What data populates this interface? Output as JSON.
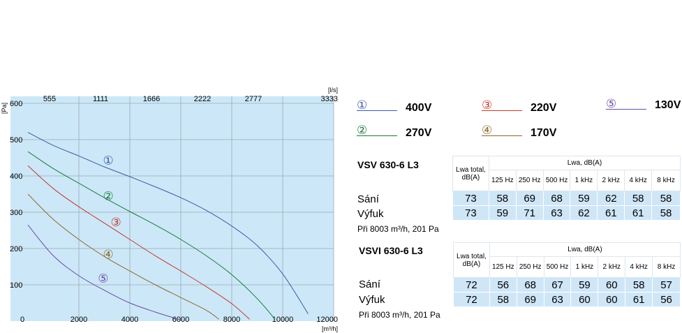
{
  "chart_data": {
    "type": "line",
    "xlabel": "[m³/h]",
    "ylabel": "[Pa]",
    "x2label": "[l/s]",
    "xlim": [
      0,
      12000
    ],
    "ylim": [
      0,
      600
    ],
    "x_ticks": [
      "0",
      "2000",
      "4000",
      "6000",
      "8000",
      "10000",
      "12000"
    ],
    "y_ticks": [
      "100",
      "200",
      "300",
      "400",
      "500",
      "600"
    ],
    "x2_ticks": [
      "555",
      "1111",
      "1666",
      "2222",
      "2777",
      "3333"
    ],
    "grid": true,
    "background": "#cce8f8",
    "series": [
      {
        "name": "①",
        "color": "#3b5aa6",
        "x": [
          0,
          1000,
          2000,
          3000,
          4000,
          5000,
          6000,
          7000,
          8000,
          9000,
          10000,
          11000
        ],
        "y": [
          520,
          484,
          455,
          425,
          398,
          370,
          340,
          305,
          262,
          208,
          130,
          20
        ]
      },
      {
        "name": "②",
        "color": "#1a7a3e",
        "x": [
          0,
          1000,
          2000,
          3000,
          4000,
          5000,
          6000,
          7000,
          8000,
          9000,
          9700
        ],
        "y": [
          467,
          420,
          380,
          340,
          302,
          265,
          225,
          180,
          128,
          62,
          5
        ]
      },
      {
        "name": "③",
        "color": "#c0392b",
        "x": [
          0,
          1000,
          2000,
          3000,
          4000,
          5000,
          6000,
          7000,
          8000,
          8700
        ],
        "y": [
          428,
          365,
          315,
          270,
          225,
          180,
          138,
          95,
          48,
          5
        ]
      },
      {
        "name": "④",
        "color": "#8b6a2b",
        "x": [
          0,
          1000,
          2000,
          3000,
          4000,
          5000,
          6000,
          7000,
          7500
        ],
        "y": [
          350,
          280,
          225,
          178,
          138,
          100,
          65,
          30,
          5
        ]
      },
      {
        "name": "⑤",
        "color": "#6a4aa8",
        "x": [
          0,
          1000,
          2000,
          3000,
          4000,
          5000,
          6000
        ],
        "y": [
          265,
          180,
          125,
          85,
          50,
          25,
          3
        ]
      }
    ],
    "annotations": [
      {
        "text": "①",
        "x": 3000,
        "y": 443,
        "color": "#3b5aa6"
      },
      {
        "text": "②",
        "x": 3000,
        "y": 345,
        "color": "#1a7a3e"
      },
      {
        "text": "③",
        "x": 3300,
        "y": 273,
        "color": "#c0392b"
      },
      {
        "text": "④",
        "x": 3000,
        "y": 185,
        "color": "#8b6a2b"
      },
      {
        "text": "⑤",
        "x": 2800,
        "y": 118,
        "color": "#6a4aa8"
      }
    ]
  },
  "legend": [
    {
      "num": "①",
      "label": "400V",
      "color": "#3b5aa6"
    },
    {
      "num": "②",
      "label": "270V",
      "color": "#1a7a3e"
    },
    {
      "num": "③",
      "label": "220V",
      "color": "#c0392b"
    },
    {
      "num": "④",
      "label": "170V",
      "color": "#8b6a2b"
    },
    {
      "num": "⑤",
      "label": "130V",
      "color": "#6a4aa8"
    }
  ],
  "tables": [
    {
      "model": "VSV 630-6 L3",
      "lwa_total": "Lwa total, dB(A)",
      "lwa_header": "Lwa, dB(A)",
      "bands": [
        "125 Hz",
        "250 Hz",
        "500 Hz",
        "1 kHz",
        "2 kHz",
        "4 kHz",
        "8 kHz"
      ],
      "rows": [
        {
          "label": "Sání",
          "values": [
            "73",
            "58",
            "69",
            "68",
            "59",
            "62",
            "58",
            "58"
          ]
        },
        {
          "label": "Výfuk",
          "values": [
            "73",
            "59",
            "71",
            "63",
            "62",
            "61",
            "61",
            "58"
          ]
        }
      ],
      "note": "Při 8003 m³/h, 201 Pa"
    },
    {
      "model": "VSVI 630-6 L3",
      "lwa_total": "Lwa total, dB(A)",
      "lwa_header": "Lwa, dB(A)",
      "bands": [
        "125 Hz",
        "250 Hz",
        "500 Hz",
        "1 kHz",
        "2 kHz",
        "4 kHz",
        "8 kHz"
      ],
      "rows": [
        {
          "label": "Sání",
          "values": [
            "72",
            "56",
            "68",
            "67",
            "59",
            "60",
            "58",
            "57"
          ]
        },
        {
          "label": "Výfuk",
          "values": [
            "72",
            "58",
            "69",
            "63",
            "60",
            "60",
            "61",
            "56"
          ]
        }
      ],
      "note": "Při 8003 m³/h, 201 Pa"
    }
  ]
}
